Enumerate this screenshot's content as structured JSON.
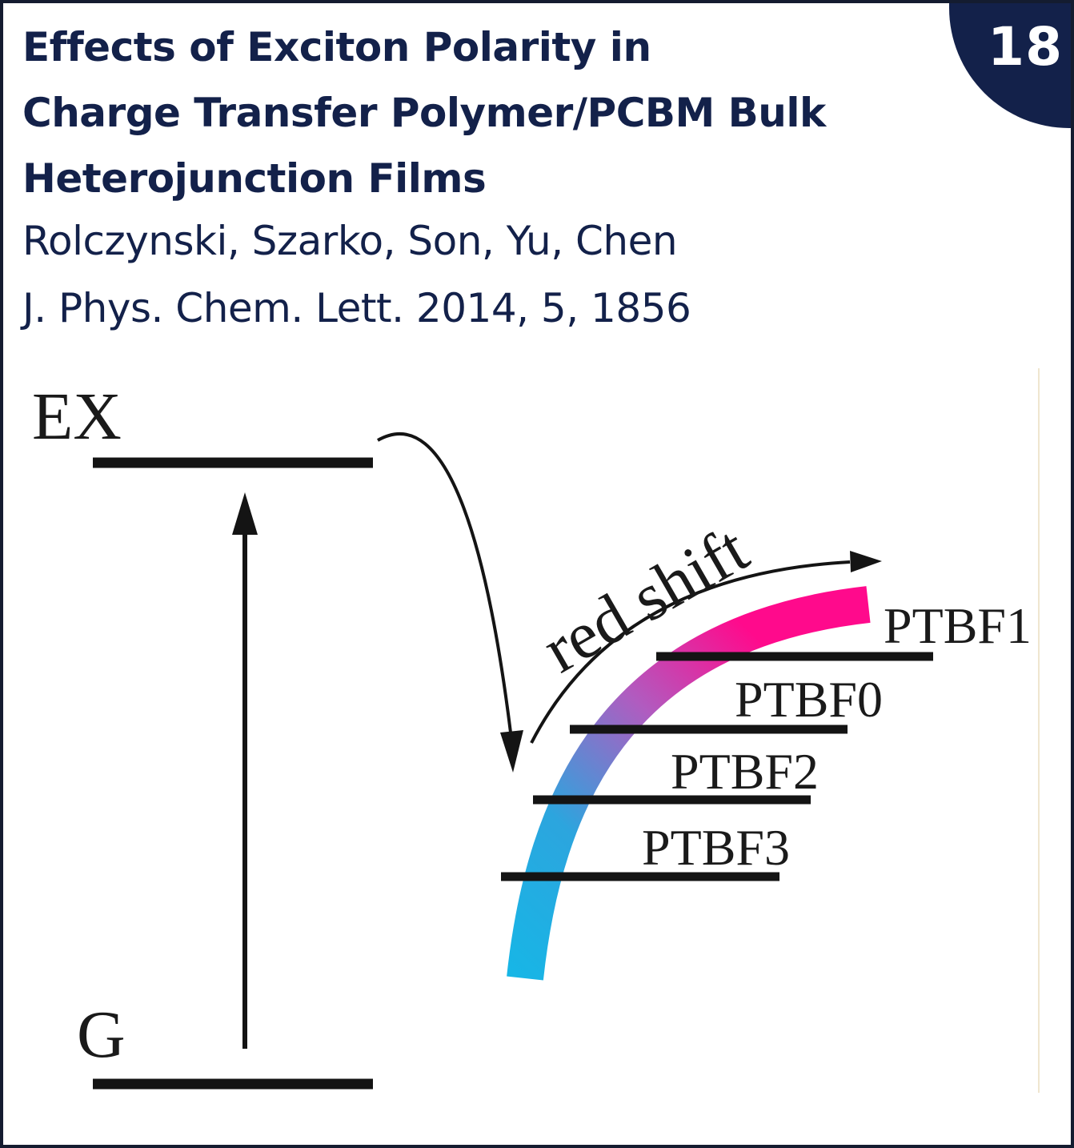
{
  "badge": {
    "number": "18"
  },
  "title_lines": [
    "Effects of Exciton Polarity in",
    "Charge Transfer Polymer/PCBM Bulk",
    "Heterojunction Films"
  ],
  "authors": "Rolczynski, Szarko, Son, Yu, Chen",
  "citation": "J. Phys. Chem. Lett. 2014, 5, 1856",
  "diagram": {
    "excited_label": "EX",
    "ground_label": "G",
    "shift_label": "red shift",
    "levels": [
      "PTBF1",
      "PTBF0",
      "PTBF2",
      "PTBF3"
    ],
    "colors": {
      "low_end": "#17b6e6",
      "high_end": "#ff0a8c",
      "text": "#13214a",
      "lines": "#141414"
    }
  }
}
